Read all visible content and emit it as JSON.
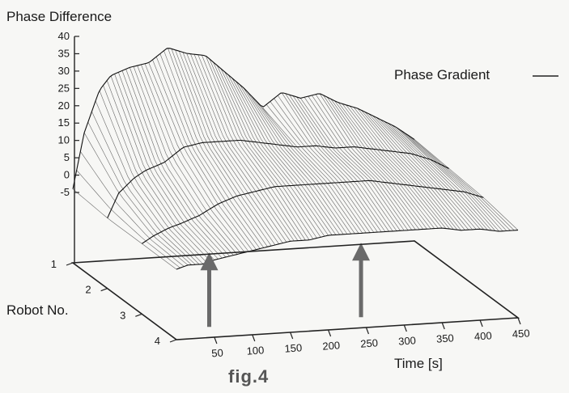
{
  "chart_data": {
    "type": "surface",
    "title": "Phase Difference",
    "caption": "fig.4",
    "xlabel": "Time [s]",
    "ylabel": "Robot No.",
    "zlabel": "Phase Difference",
    "legend": [
      {
        "label": "Phase Gradient",
        "marker": "line",
        "placement": "top-right"
      }
    ],
    "z_ticks": [
      "-5",
      "0",
      "5",
      "10",
      "15",
      "20",
      "25",
      "30",
      "35",
      "40"
    ],
    "z_range": [
      -5,
      40
    ],
    "time_ticks": [
      "50",
      "100",
      "150",
      "200",
      "250",
      "300",
      "350",
      "400",
      "450"
    ],
    "time_range": [
      0,
      450
    ],
    "robot_ticks": [
      "1",
      "2",
      "3",
      "4"
    ],
    "event_arrows_at_time": [
      50,
      250
    ],
    "series": [
      {
        "robot": 1,
        "time": [
          0,
          15,
          35,
          50,
          75,
          100,
          125,
          150,
          175,
          200,
          225,
          250,
          275,
          300,
          325,
          350,
          375,
          400,
          425,
          450
        ],
        "value": [
          -4,
          12,
          24,
          28,
          30,
          31,
          35,
          33,
          32,
          27,
          22,
          16,
          20,
          18,
          19,
          16,
          14,
          11,
          8,
          4
        ]
      },
      {
        "robot": 2,
        "time": [
          0,
          15,
          35,
          50,
          75,
          100,
          125,
          150,
          175,
          200,
          225,
          250,
          275,
          300,
          325,
          350,
          375,
          400,
          425,
          450
        ],
        "value": [
          -5,
          2,
          6,
          8,
          10,
          14,
          15,
          15,
          15,
          14,
          13,
          12,
          12,
          11,
          11,
          10,
          9,
          8,
          6,
          3
        ]
      },
      {
        "robot": 3,
        "time": [
          0,
          15,
          35,
          50,
          75,
          100,
          125,
          150,
          175,
          200,
          225,
          250,
          275,
          300,
          325,
          350,
          375,
          400,
          425,
          450
        ],
        "value": [
          -5,
          -3,
          -1,
          0,
          2,
          5,
          7,
          8,
          9,
          9,
          9,
          9,
          9,
          9,
          8,
          7,
          6,
          5,
          4,
          2
        ]
      },
      {
        "robot": 4,
        "time": [
          0,
          15,
          35,
          50,
          75,
          100,
          125,
          150,
          175,
          200,
          225,
          250,
          275,
          300,
          325,
          350,
          375,
          400,
          425,
          450
        ],
        "value": [
          -5,
          -4,
          -4,
          -3,
          -2,
          -1,
          0,
          1,
          1,
          2,
          2,
          2,
          2,
          2,
          2,
          2,
          1,
          1,
          0,
          0
        ]
      }
    ]
  }
}
